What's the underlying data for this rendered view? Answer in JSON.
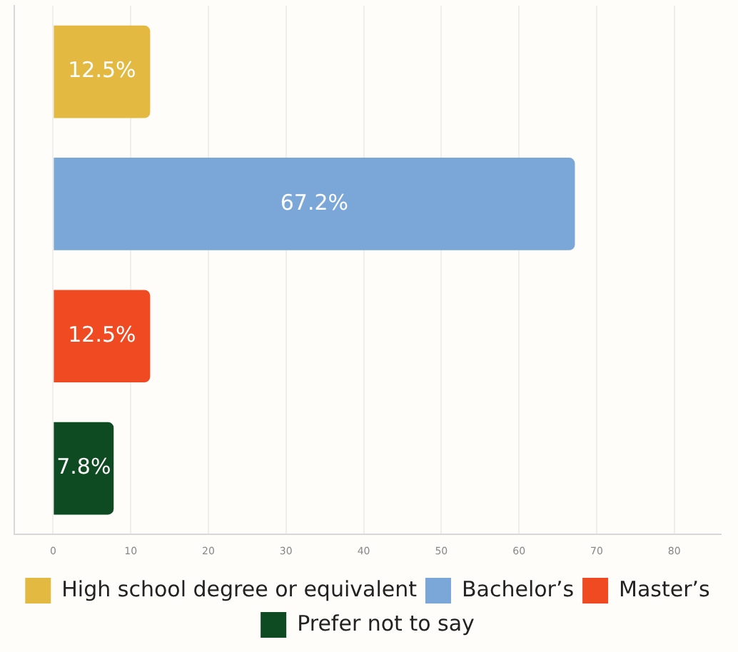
{
  "chart_data": {
    "type": "bar",
    "orientation": "horizontal",
    "categories": [
      null,
      null,
      null,
      null
    ],
    "series": [
      {
        "name": "High school degree or equivalent",
        "color": "#e3b941",
        "values": [
          12.5,
          null,
          null,
          null
        ],
        "value_labels": [
          "12.5%",
          null,
          null,
          null
        ]
      },
      {
        "name": "Bachelor’s",
        "color": "#7aa7d8",
        "values": [
          null,
          67.2,
          null,
          null
        ],
        "value_labels": [
          null,
          "67.2%",
          null,
          null
        ]
      },
      {
        "name": "Master’s",
        "color": "#f04a23",
        "values": [
          null,
          null,
          12.5,
          null
        ],
        "value_labels": [
          null,
          null,
          "12.5%",
          null
        ]
      },
      {
        "name": "Prefer not to say",
        "color": "#0e4b22",
        "values": [
          null,
          null,
          null,
          7.8
        ],
        "value_labels": [
          null,
          null,
          null,
          "7.8%"
        ]
      }
    ],
    "xlim": [
      -5,
      86
    ],
    "xticks": [
      0,
      10,
      20,
      30,
      40,
      50,
      60,
      70,
      80
    ],
    "grid": "x",
    "legend": "bottom",
    "tick_labels": "x"
  }
}
